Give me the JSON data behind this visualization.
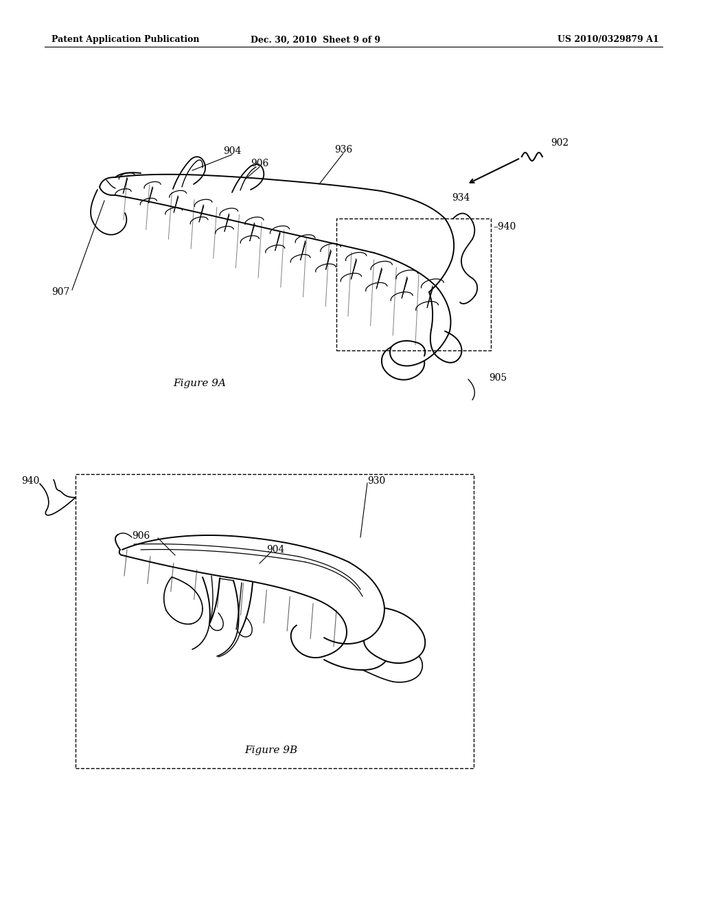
{
  "bg": "#ffffff",
  "lc": "#000000",
  "header_left": "Patent Application Publication",
  "header_center": "Dec. 30, 2010  Sheet 9 of 9",
  "header_right": "US 2010/0329879 A1",
  "fig9a_label": "Figure 9A",
  "fig9b_label": "Figure 9B",
  "label_fontsize": 10,
  "header_fontsize": 9
}
